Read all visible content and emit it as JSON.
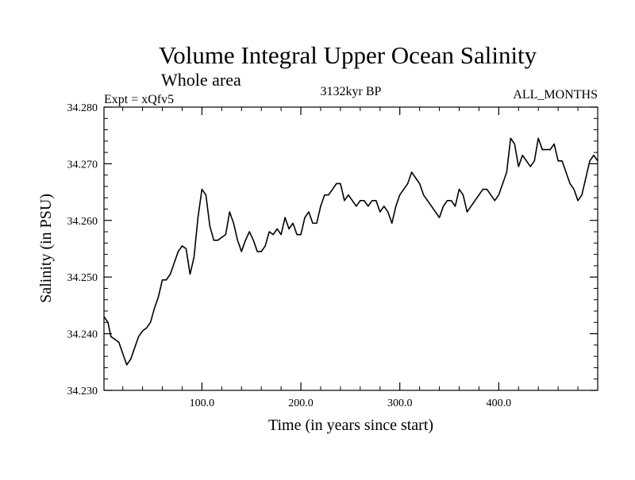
{
  "chart_data": {
    "type": "line",
    "title": "Volume Integral Upper Ocean Salinity",
    "subtitle": "Whole area",
    "left_label": "Expt = xQfv5",
    "center_label": "3132kyr BP",
    "right_label": "ALL_MONTHS",
    "xlabel": "Time (in years since start)",
    "ylabel": "Salinity (in PSU)",
    "xlim": [
      1,
      500
    ],
    "ylim": [
      34.23,
      34.28
    ],
    "x_ticks": [
      {
        "value": 100,
        "label": "100.0"
      },
      {
        "value": 200,
        "label": "200.0"
      },
      {
        "value": 300,
        "label": "300.0"
      },
      {
        "value": 400,
        "label": "400.0"
      }
    ],
    "y_ticks": [
      {
        "value": 34.23,
        "label": "34.230"
      },
      {
        "value": 34.24,
        "label": "34.240"
      },
      {
        "value": 34.25,
        "label": "34.250"
      },
      {
        "value": 34.26,
        "label": "34.260"
      },
      {
        "value": 34.27,
        "label": "34.270"
      },
      {
        "value": 34.28,
        "label": "34.280"
      }
    ],
    "grid": false,
    "series": [
      {
        "name": "Salinity",
        "color": "#000000",
        "x": [
          1,
          5,
          8,
          12,
          16,
          20,
          24,
          28,
          32,
          36,
          40,
          44,
          48,
          52,
          56,
          60,
          64,
          68,
          72,
          76,
          80,
          84,
          88,
          92,
          96,
          100,
          104,
          108,
          112,
          116,
          120,
          124,
          128,
          132,
          136,
          140,
          144,
          148,
          152,
          156,
          160,
          164,
          168,
          172,
          176,
          180,
          184,
          188,
          192,
          196,
          200,
          204,
          208,
          212,
          216,
          220,
          224,
          228,
          232,
          236,
          240,
          244,
          248,
          252,
          256,
          260,
          264,
          268,
          272,
          276,
          280,
          284,
          288,
          292,
          296,
          300,
          304,
          308,
          312,
          316,
          320,
          324,
          328,
          332,
          336,
          340,
          344,
          348,
          352,
          356,
          360,
          364,
          368,
          372,
          376,
          380,
          384,
          388,
          392,
          396,
          400,
          404,
          408,
          412,
          416,
          420,
          424,
          428,
          432,
          436,
          440,
          444,
          448,
          452,
          456,
          460,
          464,
          468,
          472,
          476,
          480,
          484,
          488,
          492,
          496,
          500
        ],
        "values": [
          34.243,
          34.242,
          34.2395,
          34.239,
          34.2385,
          34.2365,
          34.2345,
          34.2355,
          34.2375,
          34.2395,
          34.2405,
          34.241,
          34.242,
          34.2445,
          34.2465,
          34.2495,
          34.2495,
          34.2505,
          34.2525,
          34.2545,
          34.2555,
          34.255,
          34.2505,
          34.2535,
          34.2605,
          34.2655,
          34.2645,
          34.259,
          34.2565,
          34.2565,
          34.257,
          34.2575,
          34.2615,
          34.2595,
          34.2565,
          34.2545,
          34.2565,
          34.258,
          34.2565,
          34.2545,
          34.2545,
          34.2555,
          34.258,
          34.2575,
          34.2585,
          34.2575,
          34.2605,
          34.2585,
          34.2595,
          34.2575,
          34.2575,
          34.2605,
          34.2615,
          34.2595,
          34.2595,
          34.2625,
          34.2645,
          34.2645,
          34.2655,
          34.2665,
          34.2665,
          34.2635,
          34.2645,
          34.2635,
          34.2625,
          34.2635,
          34.2635,
          34.2625,
          34.2635,
          34.2635,
          34.2615,
          34.2625,
          34.2615,
          34.2595,
          34.2625,
          34.2645,
          34.2655,
          34.2665,
          34.2685,
          34.2675,
          34.2665,
          34.2645,
          34.2635,
          34.2625,
          34.2615,
          34.2605,
          34.2625,
          34.2635,
          34.2635,
          34.2625,
          34.2655,
          34.2645,
          34.2615,
          34.2625,
          34.2635,
          34.2645,
          34.2655,
          34.2655,
          34.2645,
          34.2635,
          34.2645,
          34.2665,
          34.2685,
          34.2745,
          34.2735,
          34.2695,
          34.2715,
          34.2705,
          34.2695,
          34.2705,
          34.2745,
          34.2725,
          34.2725,
          34.2725,
          34.2735,
          34.2705,
          34.2705,
          34.2685,
          34.2665,
          34.2655,
          34.2635,
          34.2645,
          34.2675,
          34.2705,
          34.2715,
          34.2705
        ]
      }
    ]
  }
}
